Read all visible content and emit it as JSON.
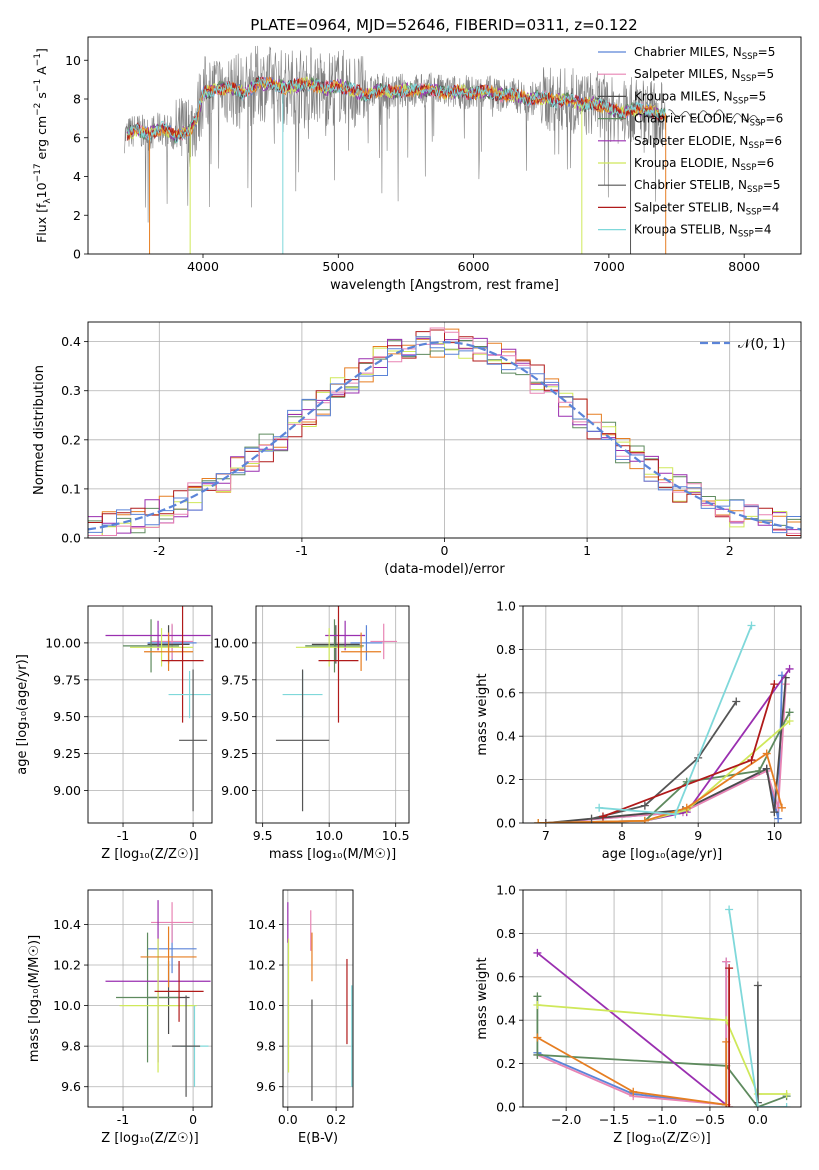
{
  "title": "PLATE=0964, MJD=52646, FIBERID=0311, z=0.122",
  "colors": {
    "chabrier_miles": "#5b84d8",
    "salpeter_miles": "#e884b4",
    "kroupa_miles": "#4a4a4a",
    "chabrier_elodie": "#5e8a5e",
    "salpeter_elodie": "#9a2fb0",
    "kroupa_elodie": "#cfe85a",
    "chabrier_stelib": "#555555",
    "salpeter_stelib": "#b01a1a",
    "kroupa_stelib": "#7fd8da",
    "orange": "#e67e22",
    "data": "#808080"
  },
  "chart_data": [
    {
      "id": "spectrum",
      "type": "line",
      "title": "PLATE=0964, MJD=52646, FIBERID=0311, z=0.122",
      "xlabel": "wavelength [Angstrom, rest frame]",
      "ylabel": "Flux [f_λ 10^-17 erg cm^-2 s^-1 A^-1]",
      "xlim": [
        3150,
        8420
      ],
      "ylim": [
        0,
        11.2
      ],
      "xticks": [
        4000,
        5000,
        6000,
        7000,
        8000
      ],
      "yticks": [
        0,
        2,
        4,
        6,
        8,
        10
      ],
      "grid": false,
      "legend": "upper right",
      "legend_entries": [
        {
          "label": "Chabrier MILES, N",
          "sub": "SSP",
          "n": "=5",
          "color_key": "chabrier_miles"
        },
        {
          "label": "Salpeter MILES, N",
          "sub": "SSP",
          "n": "=5",
          "color_key": "salpeter_miles"
        },
        {
          "label": "Kroupa MILES, N",
          "sub": "SSP",
          "n": "=5",
          "color_key": "kroupa_miles"
        },
        {
          "label": "Chabrier ELODIE, N",
          "sub": "SSP",
          "n": "=6",
          "color_key": "chabrier_elodie"
        },
        {
          "label": "Salpeter ELODIE, N",
          "sub": "SSP",
          "n": "=6",
          "color_key": "salpeter_elodie"
        },
        {
          "label": "Kroupa ELODIE, N",
          "sub": "SSP",
          "n": "=6",
          "color_key": "kroupa_elodie"
        },
        {
          "label": "Chabrier STELIB, N",
          "sub": "SSP",
          "n": "=5",
          "color_key": "chabrier_stelib"
        },
        {
          "label": "Salpeter STELIB, N",
          "sub": "SSP",
          "n": "=4",
          "color_key": "salpeter_stelib"
        },
        {
          "label": "Kroupa STELIB, N",
          "sub": "SSP",
          "n": "=4",
          "color_key": "kroupa_stelib"
        }
      ],
      "continuum": {
        "x": [
          3420,
          3500,
          3600,
          3700,
          3800,
          3900,
          3950,
          4000,
          4100,
          4200,
          4300,
          4400,
          4500,
          4600,
          4700,
          4800,
          4900,
          5000,
          5100,
          5200,
          5300,
          5400,
          5500,
          5600,
          5700,
          5800,
          5900,
          6000,
          6100,
          6200,
          6300,
          6400,
          6500,
          6600,
          6700,
          6800,
          6900,
          7000,
          7100,
          7200,
          7300,
          7400,
          7500,
          7600,
          7700,
          7800,
          7900,
          8000,
          8100
        ],
        "y": [
          6.1,
          6.4,
          6.2,
          6.5,
          6.1,
          6.4,
          6.9,
          8.3,
          8.5,
          8.6,
          8.3,
          8.8,
          8.8,
          8.6,
          8.7,
          8.8,
          8.5,
          8.7,
          8.5,
          8.2,
          8.5,
          8.3,
          8.5,
          8.4,
          8.5,
          8.3,
          8.4,
          8.3,
          8.4,
          8.2,
          8.2,
          8.0,
          8.1,
          7.9,
          8.0,
          7.7,
          7.8,
          7.5,
          7.3,
          7.5,
          7.4,
          7.2,
          7.3,
          7.1,
          7.2,
          7.3,
          7.0,
          7.1,
          6.9
        ]
      }
    },
    {
      "id": "residuals",
      "type": "histogram",
      "xlabel": "(data-model)/error",
      "ylabel": "Normed distribution",
      "xlim": [
        -2.5,
        2.5
      ],
      "ylim": [
        0,
        0.44
      ],
      "xticks": [
        -2,
        -1,
        0,
        1,
        2
      ],
      "yticks": [
        0.0,
        0.1,
        0.2,
        0.3,
        0.4
      ],
      "grid": true,
      "legend": "upper right",
      "legend_label": "𝒩(0, 1)",
      "bin_width": 0.1
    },
    {
      "id": "age_vs_Z",
      "type": "errorbar",
      "xlabel": "Z [log₁₀(Z/Z☉)]",
      "ylabel": "age  [log₁₀(age/yr)]",
      "xlim": [
        -1.5,
        0.27
      ],
      "ylim": [
        8.78,
        10.25
      ],
      "xticks": [
        -1,
        0
      ],
      "yticks": [
        9.0,
        9.25,
        9.5,
        9.75,
        10.0
      ],
      "grid": true,
      "points": [
        {
          "color_key": "chabrier_miles",
          "x": -0.3,
          "xerr": 0.35,
          "y": 10.0,
          "yerr": 0.12
        },
        {
          "color_key": "salpeter_miles",
          "x": -0.3,
          "xerr": 0.3,
          "y": 10.01,
          "yerr": 0.12
        },
        {
          "color_key": "kroupa_miles",
          "x": -0.35,
          "xerr": 0.3,
          "y": 9.99,
          "yerr": 0.13
        },
        {
          "color_key": "chabrier_elodie",
          "x": -0.6,
          "xerr": 0.4,
          "y": 9.98,
          "yerr": 0.18
        },
        {
          "color_key": "salpeter_elodie",
          "x": -0.5,
          "xerr": 0.75,
          "y": 10.05,
          "yerr": 0.1
        },
        {
          "color_key": "kroupa_elodie",
          "x": -0.45,
          "xerr": 0.45,
          "y": 9.97,
          "yerr": 0.13
        },
        {
          "color_key": "orange",
          "x": -0.35,
          "xerr": 0.35,
          "y": 9.94,
          "yerr": 0.13
        },
        {
          "color_key": "salpeter_stelib",
          "x": -0.15,
          "xerr": 0.3,
          "y": 9.88,
          "yerr": 0.42
        },
        {
          "color_key": "kroupa_stelib",
          "x": -0.05,
          "xerr": 0.3,
          "y": 9.65,
          "yerr": 0.16
        },
        {
          "color_key": "chabrier_stelib",
          "x": 0.0,
          "xerr": 0.2,
          "y": 9.34,
          "yerr": 0.48
        }
      ]
    },
    {
      "id": "age_vs_mass",
      "type": "errorbar",
      "xlabel": "mass [log₁₀(M/M☉)]",
      "ylabel": "",
      "xlim": [
        9.45,
        10.6
      ],
      "ylim": [
        8.78,
        10.25
      ],
      "xticks": [
        9.5,
        10.0,
        10.5
      ],
      "yticks": [
        9.0,
        9.25,
        9.5,
        9.75,
        10.0
      ],
      "grid": true,
      "points": [
        {
          "color_key": "chabrier_miles",
          "x": 10.28,
          "xerr": 0.12,
          "y": 10.0,
          "yerr": 0.12
        },
        {
          "color_key": "salpeter_miles",
          "x": 10.41,
          "xerr": 0.1,
          "y": 10.01,
          "yerr": 0.12
        },
        {
          "color_key": "kroupa_miles",
          "x": 10.05,
          "xerr": 0.18,
          "y": 9.99,
          "yerr": 0.13
        },
        {
          "color_key": "chabrier_elodie",
          "x": 10.04,
          "xerr": 0.22,
          "y": 9.98,
          "yerr": 0.18
        },
        {
          "color_key": "salpeter_elodie",
          "x": 10.12,
          "xerr": 0.15,
          "y": 10.05,
          "yerr": 0.1
        },
        {
          "color_key": "kroupa_elodie",
          "x": 10.0,
          "xerr": 0.25,
          "y": 9.97,
          "yerr": 0.13
        },
        {
          "color_key": "orange",
          "x": 10.24,
          "xerr": 0.15,
          "y": 9.94,
          "yerr": 0.13
        },
        {
          "color_key": "salpeter_stelib",
          "x": 10.07,
          "xerr": 0.15,
          "y": 9.88,
          "yerr": 0.42
        },
        {
          "color_key": "kroupa_stelib",
          "x": 9.8,
          "xerr": 0.15,
          "y": 9.65,
          "yerr": 0.16
        },
        {
          "color_key": "chabrier_stelib",
          "x": 9.8,
          "xerr": 0.2,
          "y": 9.34,
          "yerr": 0.48
        }
      ]
    },
    {
      "id": "weight_vs_age",
      "type": "line",
      "xlabel": "age  [log₁₀(age/yr)]",
      "ylabel": "mass weight",
      "xlim": [
        6.7,
        10.35
      ],
      "ylim": [
        0,
        1.0
      ],
      "xticks": [
        7,
        8,
        9,
        10
      ],
      "yticks": [
        0.0,
        0.2,
        0.4,
        0.6,
        0.8,
        1.0
      ],
      "grid": true,
      "series": [
        {
          "color_key": "chabrier_miles",
          "x": [
            7.0,
            8.8,
            9.9,
            10.05,
            10.1
          ],
          "y": [
            0.0,
            0.05,
            0.25,
            0.02,
            0.68
          ]
        },
        {
          "color_key": "salpeter_miles",
          "x": [
            7.0,
            8.8,
            9.9,
            10.05,
            10.15
          ],
          "y": [
            0.0,
            0.05,
            0.24,
            0.07,
            0.64
          ]
        },
        {
          "color_key": "kroupa_miles",
          "x": [
            7.0,
            8.8,
            9.9,
            10.0,
            10.15
          ],
          "y": [
            0.0,
            0.06,
            0.25,
            0.05,
            0.67
          ]
        },
        {
          "color_key": "chabrier_elodie",
          "x": [
            6.9,
            8.3,
            8.85,
            9.8,
            10.2
          ],
          "y": [
            0.0,
            0.01,
            0.19,
            0.24,
            0.51
          ]
        },
        {
          "color_key": "salpeter_elodie",
          "x": [
            6.9,
            8.3,
            8.85,
            10.2
          ],
          "y": [
            0.0,
            0.01,
            0.05,
            0.71
          ]
        },
        {
          "color_key": "kroupa_elodie",
          "x": [
            6.9,
            8.3,
            8.85,
            10.2
          ],
          "y": [
            0.0,
            0.01,
            0.06,
            0.47
          ]
        },
        {
          "color_key": "orange",
          "x": [
            6.9,
            8.3,
            8.85,
            9.9,
            10.1
          ],
          "y": [
            0.0,
            0.01,
            0.07,
            0.32,
            0.07
          ]
        },
        {
          "color_key": "chabrier_stelib",
          "x": [
            7.6,
            8.3,
            9.0,
            9.5
          ],
          "y": [
            0.02,
            0.08,
            0.3,
            0.56
          ]
        },
        {
          "color_key": "salpeter_stelib",
          "x": [
            7.75,
            9.7,
            10.0
          ],
          "y": [
            0.03,
            0.29,
            0.64
          ]
        },
        {
          "color_key": "kroupa_stelib",
          "x": [
            7.7,
            8.7,
            9.7
          ],
          "y": [
            0.07,
            0.04,
            0.91
          ]
        }
      ]
    },
    {
      "id": "mass_vs_Z",
      "type": "errorbar",
      "xlabel": "Z [log₁₀(Z/Z☉)]",
      "ylabel": "mass [log₁₀(M/M☉)]",
      "xlim": [
        -1.5,
        0.27
      ],
      "ylim": [
        9.5,
        10.57
      ],
      "xticks": [
        -1,
        0
      ],
      "yticks": [
        9.6,
        9.8,
        10.0,
        10.2,
        10.4
      ],
      "grid": true,
      "points": [
        {
          "color_key": "chabrier_miles",
          "x": -0.3,
          "xerr": 0.35,
          "y": 10.28,
          "yerr": 0.12
        },
        {
          "color_key": "salpeter_miles",
          "x": -0.3,
          "xerr": 0.3,
          "y": 10.41,
          "yerr": 0.1
        },
        {
          "color_key": "kroupa_miles",
          "x": -0.35,
          "xerr": 0.3,
          "y": 10.04,
          "yerr": 0.18
        },
        {
          "color_key": "chabrier_elodie",
          "x": -0.65,
          "xerr": 0.45,
          "y": 10.04,
          "yerr": 0.32
        },
        {
          "color_key": "salpeter_elodie",
          "x": -0.5,
          "xerr": 0.75,
          "y": 10.12,
          "yerr": 0.4
        },
        {
          "color_key": "kroupa_elodie",
          "x": -0.5,
          "xerr": 0.55,
          "y": 10.0,
          "yerr": 0.33
        },
        {
          "color_key": "orange",
          "x": -0.35,
          "xerr": 0.4,
          "y": 10.24,
          "yerr": 0.15
        },
        {
          "color_key": "salpeter_stelib",
          "x": -0.2,
          "xerr": 0.35,
          "y": 10.07,
          "yerr": 0.15
        },
        {
          "color_key": "kroupa_stelib",
          "x": 0.02,
          "xerr": 0.2,
          "y": 9.8,
          "yerr": 0.2
        },
        {
          "color_key": "chabrier_stelib",
          "x": -0.1,
          "xerr": 0.2,
          "y": 9.8,
          "yerr": 0.25
        }
      ]
    },
    {
      "id": "mass_vs_ebv",
      "type": "errorbar",
      "xlabel": "E(B-V)",
      "ylabel": "",
      "xlim": [
        -0.02,
        0.27
      ],
      "ylim": [
        9.5,
        10.57
      ],
      "xticks": [
        0.0,
        0.2
      ],
      "yticks": [
        9.6,
        9.8,
        10.0,
        10.2,
        10.4
      ],
      "grid": true,
      "points": [
        {
          "color_key": "salpeter_elodie",
          "x": 0.0,
          "xerr": 0.0,
          "y": 10.41,
          "yerr": 0.1
        },
        {
          "color_key": "kroupa_elodie",
          "x": 0.003,
          "xerr": 0.0,
          "y": 10.0,
          "yerr": 0.33
        },
        {
          "color_key": "salpeter_miles",
          "x": 0.095,
          "xerr": 0.0,
          "y": 10.37,
          "yerr": 0.1
        },
        {
          "color_key": "orange",
          "x": 0.1,
          "xerr": 0.0,
          "y": 10.24,
          "yerr": 0.12
        },
        {
          "color_key": "chabrier_stelib",
          "x": 0.1,
          "xerr": 0.0,
          "y": 9.78,
          "yerr": 0.25
        },
        {
          "color_key": "salpeter_stelib",
          "x": 0.245,
          "xerr": 0.0,
          "y": 10.02,
          "yerr": 0.21
        },
        {
          "color_key": "kroupa_stelib",
          "x": 0.265,
          "xerr": 0.0,
          "y": 9.85,
          "yerr": 0.25
        }
      ]
    },
    {
      "id": "weight_vs_Z",
      "type": "line",
      "xlabel": "Z [log₁₀(Z/Z☉)]",
      "ylabel": "mass weight",
      "xlim": [
        -2.45,
        0.45
      ],
      "ylim": [
        0,
        1.0
      ],
      "xticks": [
        -2.0,
        -1.5,
        -1.0,
        -0.5,
        0.0
      ],
      "yticks": [
        0.0,
        0.2,
        0.4,
        0.6,
        0.8,
        1.0
      ],
      "grid": true,
      "series": [
        {
          "color_key": "chabrier_miles",
          "x": [
            -2.3,
            -1.3,
            -0.33,
            -0.33
          ],
          "y": [
            0.25,
            0.06,
            0.01,
            0.67
          ]
        },
        {
          "color_key": "salpeter_miles",
          "x": [
            -2.3,
            -1.3,
            -0.33,
            -0.33
          ],
          "y": [
            0.24,
            0.05,
            0.01,
            0.67
          ]
        },
        {
          "color_key": "chabrier_elodie",
          "x": [
            -2.3,
            -2.3,
            -0.33,
            0.0,
            0.3
          ],
          "y": [
            0.51,
            0.24,
            0.19,
            0.0,
            0.05
          ]
        },
        {
          "color_key": "salpeter_elodie",
          "x": [
            -2.3,
            -0.33
          ],
          "y": [
            0.71,
            0.01
          ]
        },
        {
          "color_key": "kroupa_elodie",
          "x": [
            -2.3,
            -0.33,
            0.0,
            0.3
          ],
          "y": [
            0.47,
            0.4,
            0.06,
            0.06
          ]
        },
        {
          "color_key": "orange",
          "x": [
            -2.3,
            -1.3,
            -0.33,
            -0.33
          ],
          "y": [
            0.32,
            0.07,
            0.01,
            0.3
          ]
        },
        {
          "color_key": "chabrier_stelib",
          "x": [
            0.0,
            0.0
          ],
          "y": [
            0.02,
            0.56
          ]
        },
        {
          "color_key": "salpeter_stelib",
          "x": [
            -0.3,
            -0.3
          ],
          "y": [
            0.0,
            0.64
          ]
        },
        {
          "color_key": "kroupa_stelib",
          "x": [
            -0.3,
            0.0,
            0.3
          ],
          "y": [
            0.91,
            0.0,
            0.0
          ]
        }
      ]
    }
  ]
}
